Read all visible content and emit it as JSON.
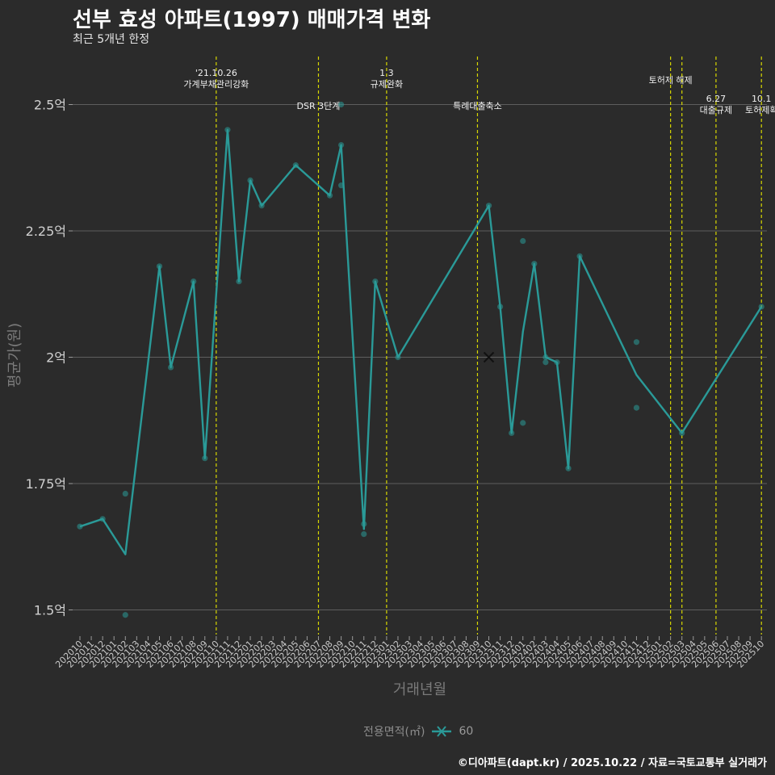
{
  "chart_data": {
    "type": "line",
    "title": "선부 효성 아파트(1997) 매매가격 변화",
    "subtitle": "최근 5개년 한정",
    "xlabel": "거래년월",
    "ylabel": "평균가(원)",
    "ylim": [
      1.44,
      2.6
    ],
    "yticks": [
      {
        "value": 1.5,
        "label": "1.5억"
      },
      {
        "value": 1.75,
        "label": "1.75억"
      },
      {
        "value": 2.0,
        "label": "2억"
      },
      {
        "value": 2.25,
        "label": "2.25억"
      },
      {
        "value": 2.5,
        "label": "2.5억"
      }
    ],
    "months": [
      "202010",
      "202011",
      "202012",
      "202101",
      "202102",
      "202103",
      "202104",
      "202105",
      "202106",
      "202107",
      "202108",
      "202109",
      "202110",
      "202111",
      "202112",
      "202201",
      "202202",
      "202203",
      "202204",
      "202205",
      "202206",
      "202207",
      "202208",
      "202209",
      "202210",
      "202211",
      "202212",
      "202301",
      "202302",
      "202303",
      "202304",
      "202305",
      "202306",
      "202307",
      "202308",
      "202309",
      "202310",
      "202311",
      "202312",
      "202401",
      "202402",
      "202403",
      "202404",
      "202405",
      "202406",
      "202407",
      "202408",
      "202409",
      "202410",
      "202411",
      "202412",
      "202501",
      "202502",
      "202503",
      "202504",
      "202505",
      "202506",
      "202507",
      "202508",
      "202509",
      "202510"
    ],
    "series": [
      {
        "name": "60",
        "color": "#2a9a98",
        "line": [
          [
            "202010",
            1.665
          ],
          [
            "202012",
            1.68
          ],
          [
            "202102",
            1.61
          ],
          [
            "202105",
            2.18
          ],
          [
            "202106",
            1.98
          ],
          [
            "202108",
            2.15
          ],
          [
            "202109",
            1.8
          ],
          [
            "202111",
            2.45
          ],
          [
            "202112",
            2.15
          ],
          [
            "202201",
            2.35
          ],
          [
            "202202",
            2.3
          ],
          [
            "202205",
            2.38
          ],
          [
            "202208",
            2.32
          ],
          [
            "202209",
            2.42
          ],
          [
            "202211",
            1.66
          ],
          [
            "202212",
            2.15
          ],
          [
            "202302",
            2.0
          ],
          [
            "202310",
            2.3
          ],
          [
            "202311",
            2.1
          ],
          [
            "202312",
            1.85
          ],
          [
            "202401",
            2.05
          ],
          [
            "202402",
            2.185
          ],
          [
            "202403",
            2.0
          ],
          [
            "202404",
            1.99
          ],
          [
            "202405",
            1.78
          ],
          [
            "202406",
            2.2
          ],
          [
            "202411",
            1.965
          ],
          [
            "202503",
            1.85
          ],
          [
            "202510",
            2.1
          ]
        ],
        "points": [
          [
            "202010",
            1.665
          ],
          [
            "202012",
            1.68
          ],
          [
            "202102",
            1.73
          ],
          [
            "202102",
            1.49
          ],
          [
            "202105",
            2.18
          ],
          [
            "202106",
            1.98
          ],
          [
            "202108",
            2.15
          ],
          [
            "202109",
            1.8
          ],
          [
            "202111",
            2.45
          ],
          [
            "202112",
            2.15
          ],
          [
            "202201",
            2.35
          ],
          [
            "202202",
            2.3
          ],
          [
            "202205",
            2.38
          ],
          [
            "202208",
            2.32
          ],
          [
            "202209",
            2.42
          ],
          [
            "202209",
            2.34
          ],
          [
            "202209",
            2.5
          ],
          [
            "202211",
            1.67
          ],
          [
            "202211",
            1.65
          ],
          [
            "202212",
            2.15
          ],
          [
            "202302",
            2.0
          ],
          [
            "202310",
            2.3
          ],
          [
            "202311",
            2.1
          ],
          [
            "202312",
            1.85
          ],
          [
            "202401",
            2.23
          ],
          [
            "202401",
            1.87
          ],
          [
            "202402",
            2.185
          ],
          [
            "202403",
            2.0
          ],
          [
            "202403",
            1.99
          ],
          [
            "202404",
            1.99
          ],
          [
            "202405",
            1.78
          ],
          [
            "202406",
            2.2
          ],
          [
            "202411",
            2.03
          ],
          [
            "202411",
            1.9
          ],
          [
            "202503",
            1.85
          ],
          [
            "202510",
            2.1
          ]
        ],
        "x_marker": [
          "202310",
          2.0
        ]
      }
    ],
    "events": [
      {
        "month": "202110",
        "lines": [
          "'21.10.26",
          "가계부채관리강화"
        ],
        "row": "top"
      },
      {
        "month": "202207",
        "lines": [
          "DSR 3단계"
        ],
        "row": "low"
      },
      {
        "month": "202301",
        "lines": [
          "1.3",
          "규제완화"
        ],
        "row": "top"
      },
      {
        "month": "202309",
        "lines": [
          "특례대출축소"
        ],
        "row": "low"
      },
      {
        "month": "202502",
        "lines": [
          "토허제 해제"
        ],
        "row": "mid"
      },
      {
        "month": "202503",
        "lines": [],
        "row": "none"
      },
      {
        "month": "202506",
        "lines": [
          "6.27",
          "대출규제"
        ],
        "row": "lower"
      },
      {
        "month": "202510",
        "lines": [
          "10.1",
          "토허제확"
        ],
        "row": "lower"
      }
    ],
    "legend": {
      "title": "전용면적(㎡)",
      "entries": [
        "60"
      ]
    },
    "caption": "©디아파트(dapt.kr) / 2025.10.22 / 자료=국토교통부 실거래가"
  }
}
